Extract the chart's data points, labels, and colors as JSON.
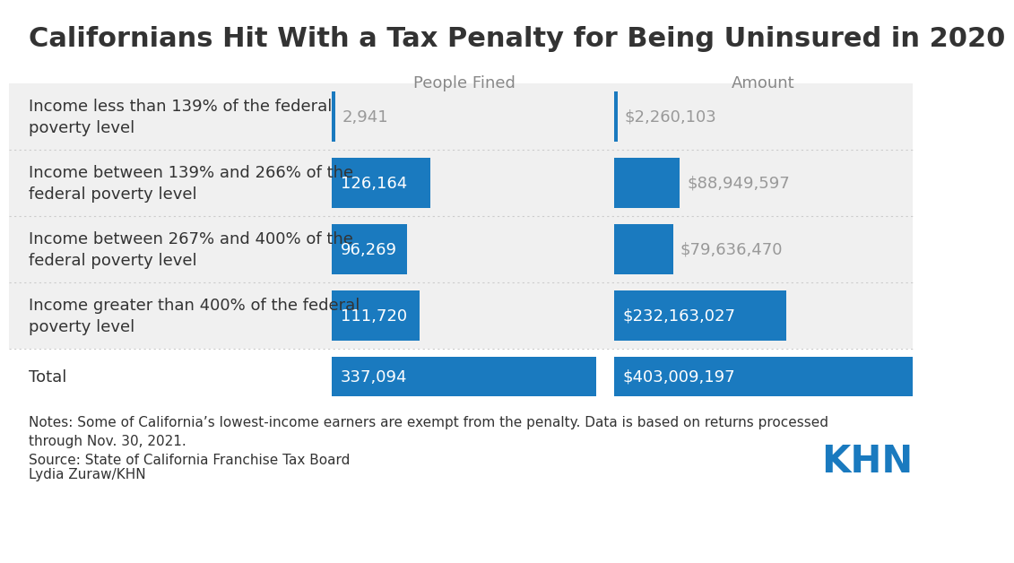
{
  "title": "Californians Hit With a Tax Penalty for Being Uninsured in 2020",
  "col_headers": [
    "People Fined",
    "Amount"
  ],
  "rows": [
    {
      "label": "Income less than 139% of the federal\npoverty level",
      "people_fined": 2941,
      "people_fined_str": "2,941",
      "amount": 2260103,
      "amount_str": "$2,260,103",
      "people_max": 337094,
      "amount_max": 403009197,
      "is_total": false
    },
    {
      "label": "Income between 139% and 266% of the\nfederal poverty level",
      "people_fined": 126164,
      "people_fined_str": "126,164",
      "amount": 88949597,
      "amount_str": "$88,949,597",
      "people_max": 337094,
      "amount_max": 403009197,
      "is_total": false
    },
    {
      "label": "Income between 267% and 400% of the\nfederal poverty level",
      "people_fined": 96269,
      "people_fined_str": "96,269",
      "amount": 79636470,
      "amount_str": "$79,636,470",
      "people_max": 337094,
      "amount_max": 403009197,
      "is_total": false
    },
    {
      "label": "Income greater than 400% of the federal\npoverty level",
      "people_fined": 111720,
      "people_fined_str": "111,720",
      "amount": 232163027,
      "amount_str": "$232,163,027",
      "people_max": 337094,
      "amount_max": 403009197,
      "is_total": false
    },
    {
      "label": "Total",
      "people_fined": 337094,
      "people_fined_str": "337,094",
      "amount": 403009197,
      "amount_str": "$403,009,197",
      "people_max": 337094,
      "amount_max": 403009197,
      "is_total": true
    }
  ],
  "bar_color": "#1a7abf",
  "row_bg": "#f0f0f0",
  "total_bg": "#ffffff",
  "text_color_dark": "#333333",
  "text_color_light": "#ffffff",
  "text_color_gray": "#999999",
  "note_text": "Notes: Some of California’s lowest-income earners are exempt from the penalty. Data is based on returns processed\nthrough Nov. 30, 2021.",
  "source_text": "Source: State of California Franchise Tax Board",
  "author_text": "Lydia Zuraw/KHN",
  "khn_text": "KHN",
  "khn_color": "#1a7abf",
  "title_fontsize": 22,
  "header_fontsize": 13,
  "label_fontsize": 13,
  "bar_text_fontsize": 13,
  "note_fontsize": 11,
  "bg_color": "#ffffff",
  "sep_color": "#cccccc",
  "header_color": "#888888"
}
